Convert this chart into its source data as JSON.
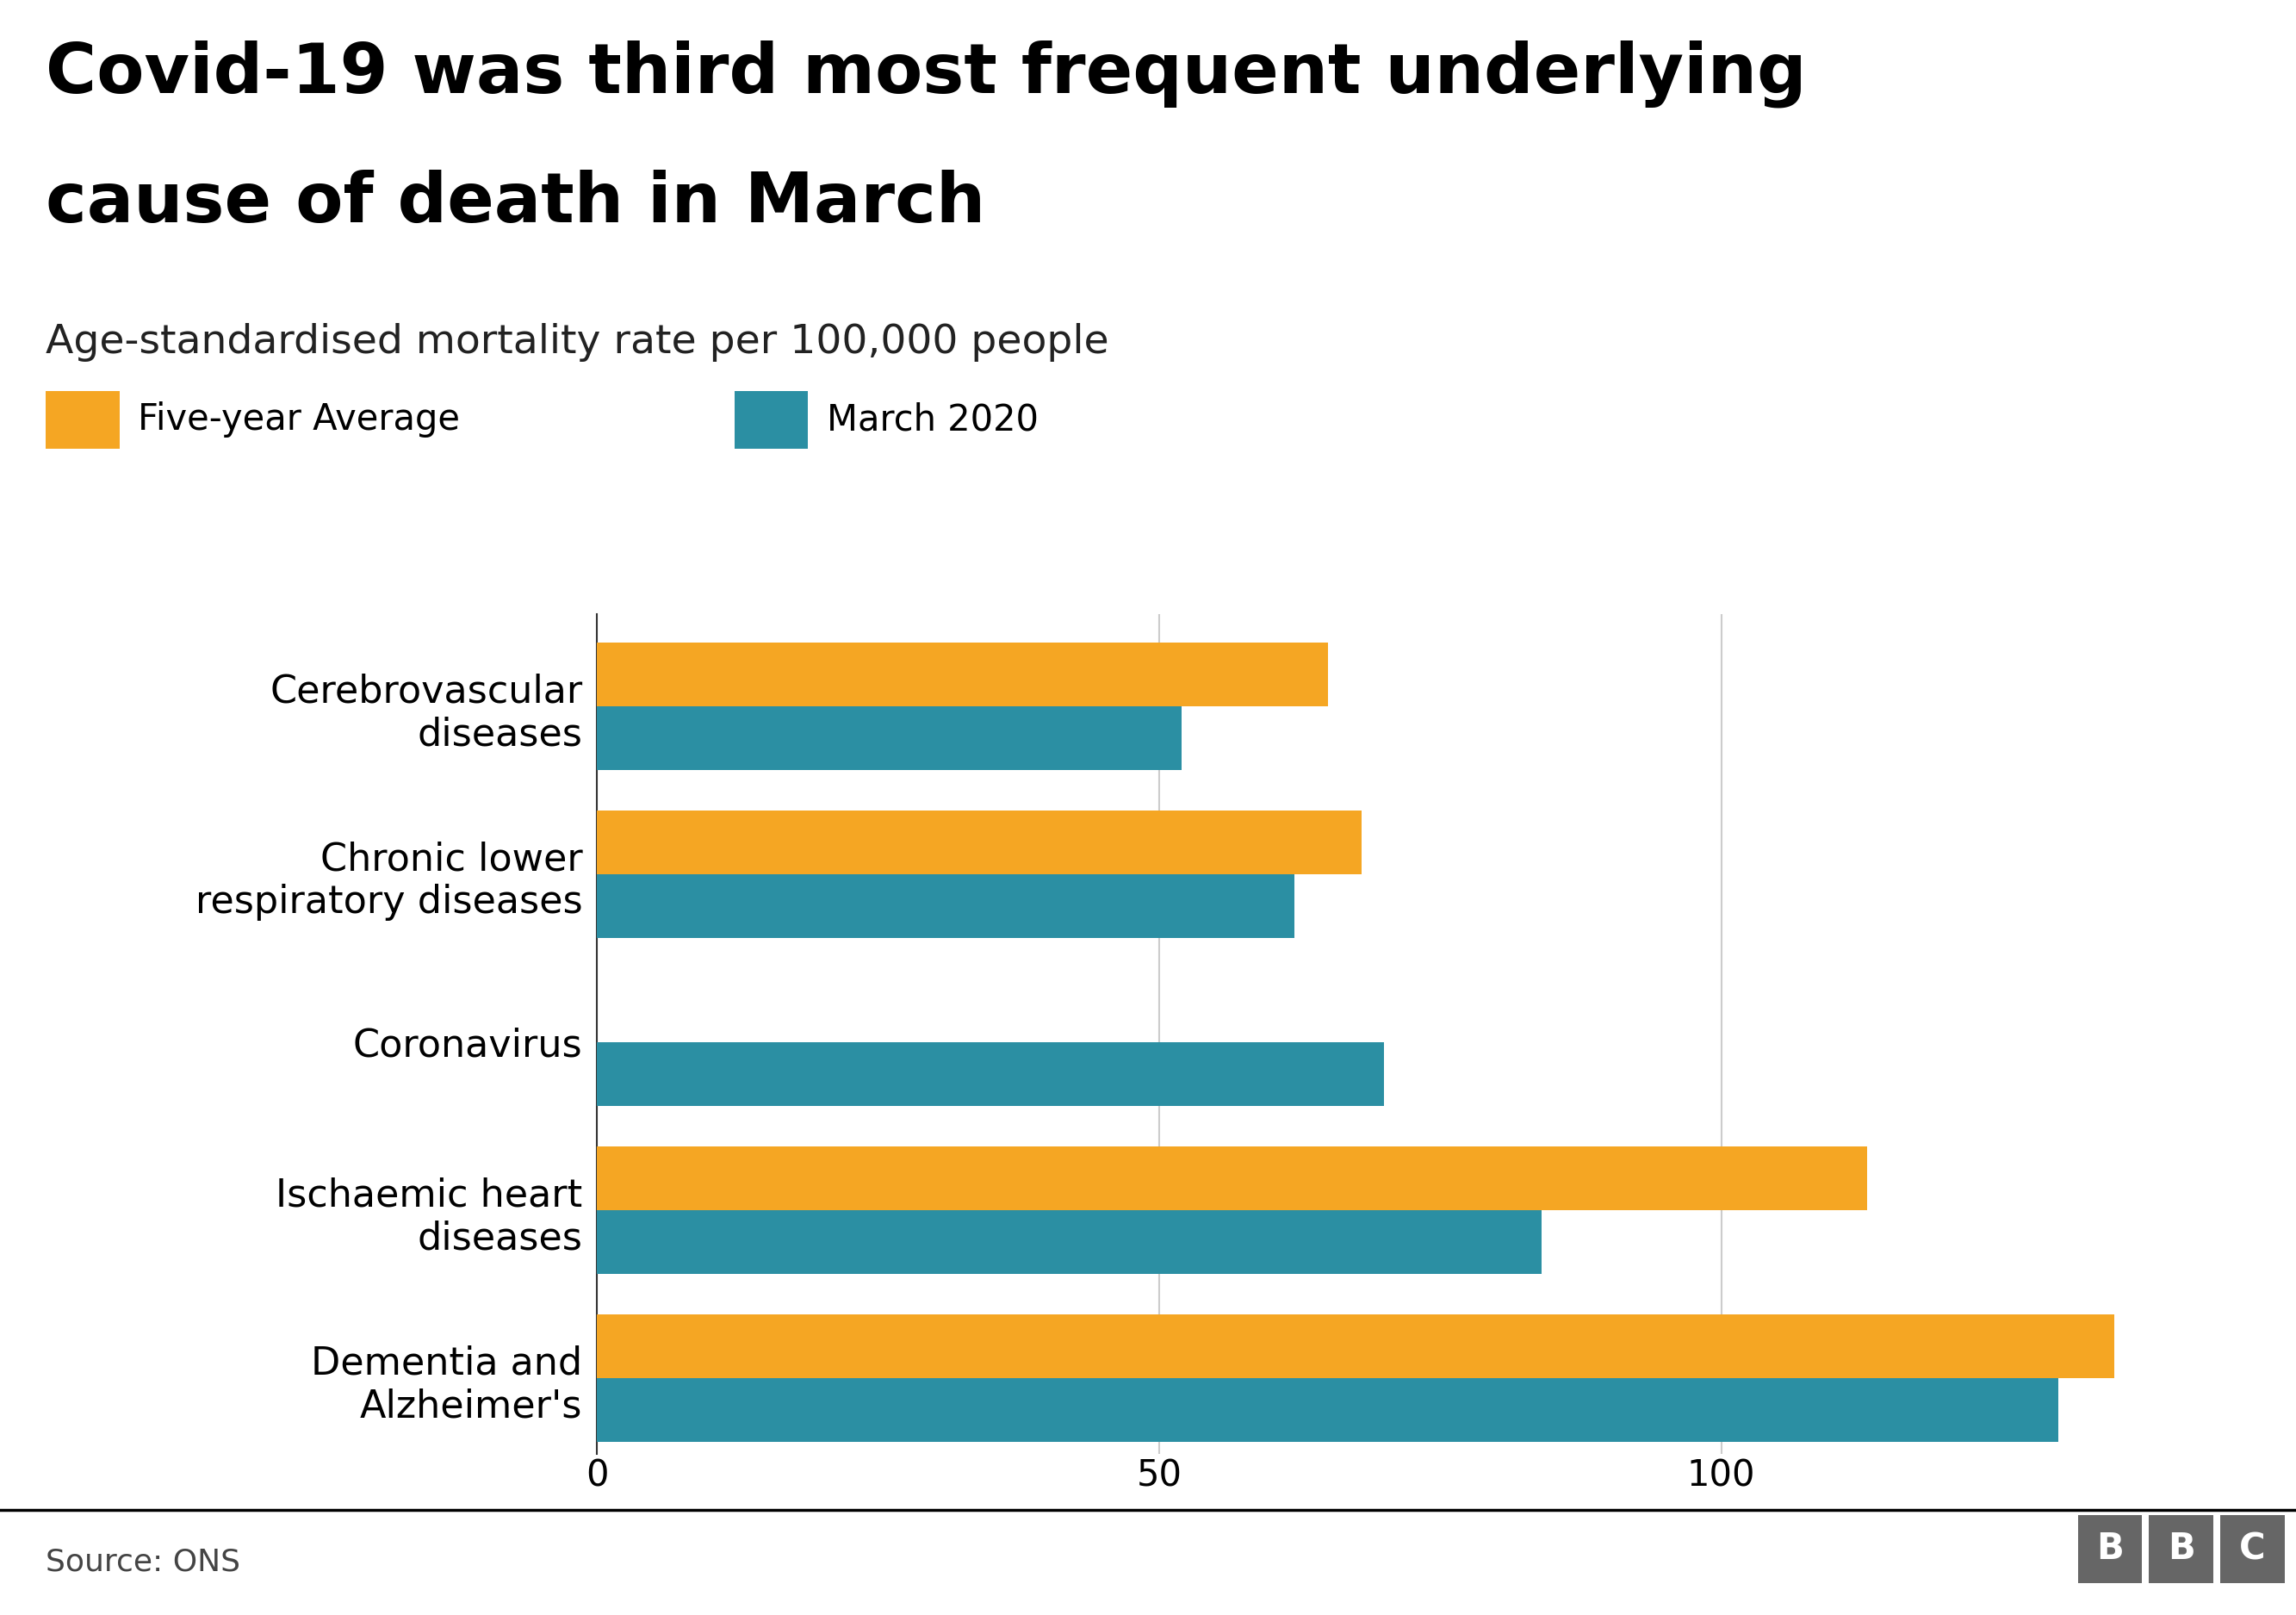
{
  "title_line1": "Covid-19 was third most frequent underlying",
  "title_line2": "cause of death in March",
  "subtitle": "Age-standardised mortality rate per 100,000 people",
  "source": "Source: ONS",
  "categories": [
    "Cerebrovascular\ndiseases",
    "Chronic lower\nrespiratory diseases",
    "Coronavirus",
    "Ischaemic heart\ndiseases",
    "Dementia and\nAlzheimer's"
  ],
  "march_2020": [
    52,
    62,
    70,
    84,
    130
  ],
  "five_year_avg": [
    65,
    68,
    0,
    113,
    135
  ],
  "color_march": "#2b8fa3",
  "color_avg": "#f5a623",
  "xlim": [
    0,
    145
  ],
  "xticks": [
    0,
    50,
    100
  ],
  "bar_height": 0.38,
  "legend_labels": [
    "Five-year Average",
    "March 2020"
  ],
  "background_color": "#ffffff",
  "title_fontsize": 58,
  "subtitle_fontsize": 34,
  "tick_fontsize": 30,
  "legend_fontsize": 30,
  "label_fontsize": 32,
  "source_fontsize": 26,
  "bbc_color": "#666666"
}
